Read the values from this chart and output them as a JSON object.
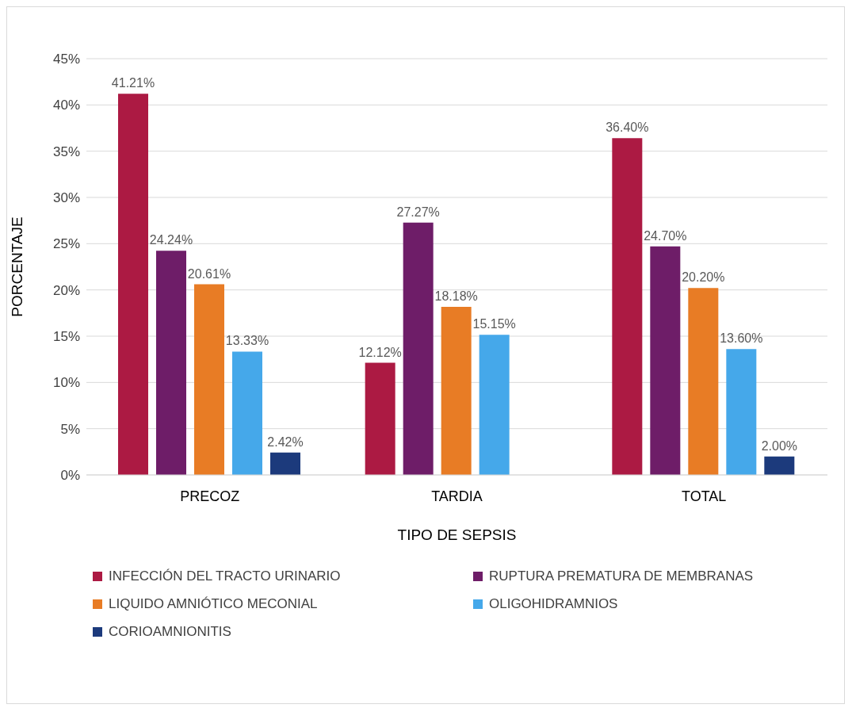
{
  "chart_data": {
    "type": "bar",
    "xlabel": "TIPO DE SEPSIS",
    "ylabel": "PORCENTAJE",
    "categories": [
      "PRECOZ",
      "TARDIA",
      "TOTAL"
    ],
    "series": [
      {
        "name": "INFECCIÓN DEL TRACTO URINARIO",
        "color": "#ac1a43",
        "values": [
          41.21,
          12.12,
          36.4
        ],
        "value_labels": [
          "41.21%",
          "12.12%",
          "36.40%"
        ]
      },
      {
        "name": "RUPTURA PREMATURA DE MEMBRANAS",
        "color": "#6e1d68",
        "values": [
          24.24,
          27.27,
          24.7
        ],
        "value_labels": [
          "24.24%",
          "27.27%",
          "24.70%"
        ]
      },
      {
        "name": "LIQUIDO AMNIÓTICO MECONIAL",
        "color": "#e87c25",
        "values": [
          20.61,
          18.18,
          20.2
        ],
        "value_labels": [
          "20.61%",
          "18.18%",
          "20.20%"
        ]
      },
      {
        "name": "OLIGOHIDRAMNIOS",
        "color": "#45a8ea",
        "values": [
          13.33,
          15.15,
          13.6
        ],
        "value_labels": [
          "13.33%",
          "15.15%",
          "13.60%"
        ]
      },
      {
        "name": "CORIOAMNIONITIS",
        "color": "#1c3a7c",
        "values": [
          2.42,
          null,
          2.0
        ],
        "value_labels": [
          "2.42%",
          null,
          "2.00%"
        ]
      }
    ],
    "ylim": [
      0,
      45
    ],
    "yticks": [
      {
        "value": 0,
        "label": "0%"
      },
      {
        "value": 5,
        "label": "5%"
      },
      {
        "value": 10,
        "label": "10%"
      },
      {
        "value": 15,
        "label": "15%"
      },
      {
        "value": 20,
        "label": "20%"
      },
      {
        "value": 25,
        "label": "25%"
      },
      {
        "value": 30,
        "label": "30%"
      },
      {
        "value": 35,
        "label": "35%"
      },
      {
        "value": 40,
        "label": "40%"
      },
      {
        "value": 45,
        "label": "45%"
      }
    ],
    "grid": "y",
    "legend": "bottom"
  }
}
